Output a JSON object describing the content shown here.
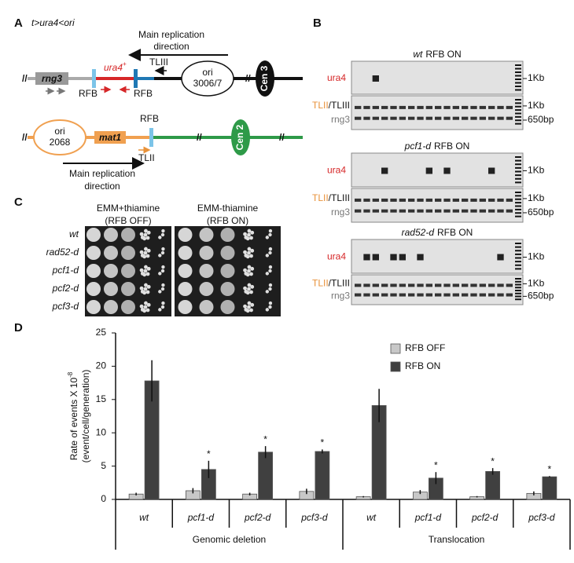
{
  "panel_a": {
    "label": "A",
    "construct": "t>ura4<ori",
    "top": {
      "direction": [
        "Main replication",
        "direction"
      ],
      "tl": "TLIII",
      "gene": "rng3",
      "ura4": "ura4",
      "ura4_sup": "+",
      "ori": [
        "ori",
        "3006/7"
      ],
      "rfb_left": "RFB",
      "rfb_right": "RFB",
      "cen": "Cen 3"
    },
    "bottom": {
      "ori": [
        "ori",
        "2068"
      ],
      "gene": "mat1",
      "rfb": "RFB",
      "tl": "TLII",
      "cen": "Cen 2",
      "direction": [
        "Main replication",
        "direction"
      ]
    }
  },
  "panel_b": {
    "label": "B",
    "gels": [
      {
        "strain": "wt",
        "title": "RFB ON",
        "top_label": "ura4",
        "top_marker": "1Kb",
        "bottom_labels": [
          "TLII",
          "/TLIII",
          "rng3"
        ],
        "bottom_markers": [
          "1Kb",
          "650bp"
        ]
      },
      {
        "strain": "pcf1-d",
        "title": "RFB ON",
        "top_label": "ura4",
        "top_marker": "1Kb",
        "bottom_labels": [
          "TLII",
          "/TLIII",
          "rng3"
        ],
        "bottom_markers": [
          "1Kb",
          "650bp"
        ]
      },
      {
        "strain": "rad52-d",
        "title": "RFB ON",
        "top_label": "ura4",
        "top_marker": "1Kb",
        "bottom_labels": [
          "TLII",
          "/TLIII",
          "rng3"
        ],
        "bottom_markers": [
          "1Kb",
          "650bp"
        ]
      }
    ]
  },
  "panel_c": {
    "label": "C",
    "conditions": [
      {
        "title": "EMM+thiamine",
        "subtitle": "(RFB OFF)"
      },
      {
        "title": "EMM-thiamine",
        "subtitle": "(RFB ON)"
      }
    ],
    "strains": [
      "wt",
      "rad52-d",
      "pcf1-d",
      "pcf2-d",
      "pcf3-d"
    ]
  },
  "chart_data": {
    "type": "bar",
    "label": "D",
    "ylabel": "Rate of events X 10",
    "ylabel_exponent": "-8",
    "ylabel_line2": "(event/cell/generation)",
    "categories": [
      "wt",
      "pcf1-d",
      "pcf2-d",
      "pcf3-d",
      "wt",
      "pcf1-d",
      "pcf2-d",
      "pcf3-d"
    ],
    "groups": [
      "Genomic deletion",
      "Translocation"
    ],
    "series": [
      {
        "name": "RFB OFF",
        "color": "#c8c8c8",
        "values": [
          0.8,
          1.3,
          0.8,
          1.2,
          0.4,
          1.1,
          0.4,
          0.9
        ],
        "errors": [
          0.2,
          0.4,
          0.2,
          0.4,
          0.1,
          0.3,
          0.1,
          0.3
        ]
      },
      {
        "name": "RFB ON",
        "color": "#404040",
        "values": [
          17.8,
          4.5,
          7.1,
          7.2,
          14.1,
          3.2,
          4.2,
          3.4
        ],
        "errors": [
          3.1,
          1.3,
          0.9,
          0.3,
          2.5,
          0.9,
          0.5,
          0.1
        ]
      }
    ],
    "annotations": [
      {
        "text": "*",
        "index": 1
      },
      {
        "text": "*",
        "index": 2
      },
      {
        "text": "*",
        "index": 3
      },
      {
        "text": "*",
        "index": 5
      },
      {
        "text": "*",
        "index": 6
      },
      {
        "text": "*",
        "index": 7
      }
    ],
    "ylim": [
      0,
      25
    ],
    "yticks": [
      0,
      5,
      10,
      15,
      20,
      25
    ],
    "grid": false
  }
}
